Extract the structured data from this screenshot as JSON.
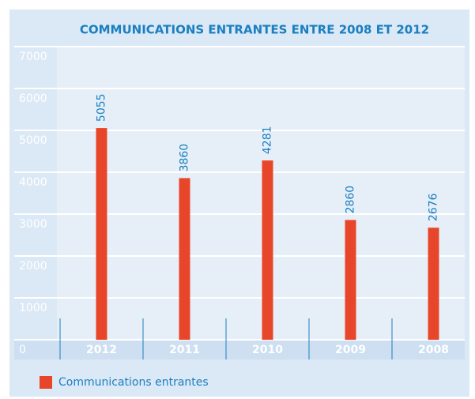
{
  "chart_data": {
    "type": "bar",
    "title": "COMMUNICATIONS ENTRANTES ENTRE 2008 ET 2012",
    "categories": [
      "2012",
      "2011",
      "2010",
      "2009",
      "2008"
    ],
    "series": [
      {
        "name": "Communications entrantes",
        "color": "#e8462a",
        "values": [
          5055,
          3860,
          4281,
          2860,
          2676
        ]
      }
    ],
    "ylim": [
      0,
      7000
    ],
    "yticks": [
      0,
      1000,
      2000,
      3000,
      4000,
      5000,
      6000,
      7000
    ],
    "grid": true,
    "legend": "bottom-left"
  }
}
